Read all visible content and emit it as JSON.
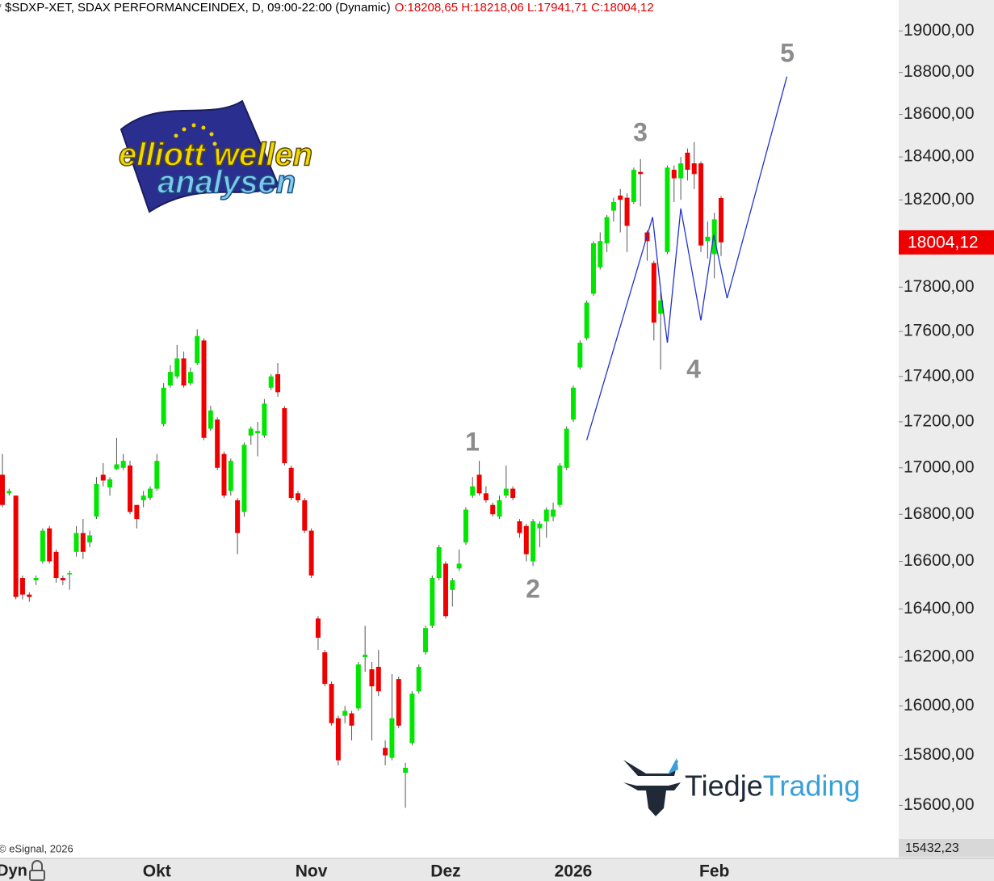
{
  "chart_data": {
    "type": "candlestick",
    "header": "* $SDXP-XET, SDAX PERFORMANCEINDEX, D, 09:00-22:00 (Dynamic)",
    "ohlc_text": "O:18208,65 H:18218,06 L:17941,71 C:18004,12",
    "copyright": "© eSignal, 2026",
    "mode_label": "Dyn",
    "logo_top": "elliott wellen",
    "logo_bottom": "analysen",
    "brand_first": "Tiedje",
    "brand_second": "Trading",
    "up_color": "#00e600",
    "down_color": "#ee0000",
    "log_scale": true,
    "grid": false,
    "ylim": [
      15432.23,
      19150
    ],
    "bottom_label": {
      "value": 15432.23,
      "label": "15432,23"
    },
    "last_price": {
      "value": 18004.12,
      "label": "18004,12"
    },
    "yticks": [
      {
        "value": 15600,
        "label": "15600,00"
      },
      {
        "value": 15800,
        "label": "15800,00"
      },
      {
        "value": 16000,
        "label": "16000,00"
      },
      {
        "value": 16200,
        "label": "16200,00"
      },
      {
        "value": 16400,
        "label": "16400,00"
      },
      {
        "value": 16600,
        "label": "16600,00"
      },
      {
        "value": 16800,
        "label": "16800,00"
      },
      {
        "value": 17000,
        "label": "17000,00"
      },
      {
        "value": 17200,
        "label": "17200,00"
      },
      {
        "value": 17400,
        "label": "17400,00"
      },
      {
        "value": 17600,
        "label": "17600,00"
      },
      {
        "value": 17800,
        "label": "17800,00"
      },
      {
        "value": 18200,
        "label": "18200,00"
      },
      {
        "value": 18400,
        "label": "18400,00"
      },
      {
        "value": 18600,
        "label": "18600,00"
      },
      {
        "value": 18800,
        "label": "18800,00"
      },
      {
        "value": 19000,
        "label": "19000,00"
      }
    ],
    "categories": [
      null,
      null,
      null,
      null,
      null,
      null,
      null,
      null,
      null,
      null,
      null,
      null,
      null,
      null,
      null,
      null,
      null,
      null,
      null,
      null,
      null,
      null,
      null,
      "Okt",
      null,
      null,
      null,
      null,
      null,
      null,
      null,
      null,
      null,
      null,
      null,
      null,
      null,
      null,
      null,
      null,
      null,
      null,
      null,
      null,
      null,
      null,
      "Nov",
      null,
      null,
      null,
      null,
      null,
      null,
      null,
      null,
      null,
      null,
      null,
      null,
      null,
      null,
      null,
      null,
      null,
      null,
      null,
      "Dez",
      null,
      null,
      null,
      null,
      null,
      null,
      null,
      null,
      null,
      null,
      null,
      null,
      null,
      null,
      null,
      null,
      null,
      null,
      "2026",
      null,
      null,
      null,
      null,
      null,
      null,
      null,
      null,
      null,
      null,
      null,
      null,
      null,
      null,
      null,
      null,
      null,
      null,
      null,
      null,
      "Feb",
      null
    ],
    "open": [
      16970,
      16890,
      16880,
      16530,
      16460,
      16520,
      16600,
      16740,
      16640,
      16530,
      16545,
      16640,
      16720,
      16680,
      16790,
      16970,
      16915,
      16995,
      17000,
      17010,
      16840,
      16860,
      16870,
      16910,
      17190,
      17360,
      17400,
      17480,
      17370,
      17460,
      17560,
      17170,
      17210,
      17060,
      16900,
      16860,
      16810,
      17140,
      17150,
      17140,
      17350,
      17410,
      17260,
      17000,
      16890,
      16860,
      16730,
      16360,
      16220,
      16090,
      15950,
      15960,
      15970,
      15990,
      16200,
      16150,
      16160,
      15830,
      15790,
      16110,
      15730,
      15850,
      16060,
      16220,
      16330,
      16530,
      16590,
      16480,
      16570,
      16680,
      16880,
      16970,
      16890,
      16840,
      16790,
      16880,
      16910,
      16770,
      16750,
      16600,
      16740,
      16770,
      16790,
      16840,
      17000,
      17210,
      17440,
      17570,
      17770,
      17890,
      18000,
      18150,
      18220,
      18210,
      18190,
      18330,
      18050,
      17910,
      17680,
      17960,
      18340,
      18300,
      18420,
      18370,
      18370,
      18010,
      17950,
      18208.65
    ],
    "high": [
      17060,
      16910,
      16880,
      16540,
      16470,
      16540,
      16740,
      16750,
      16650,
      16540,
      16560,
      16750,
      16780,
      16730,
      16960,
      17020,
      16960,
      17130,
      17060,
      17030,
      16840,
      16900,
      16920,
      17060,
      17370,
      17450,
      17540,
      17510,
      17440,
      17610,
      17570,
      17270,
      17220,
      17070,
      17040,
      16870,
      17110,
      17180,
      17200,
      17300,
      17410,
      17460,
      17270,
      17010,
      16900,
      16870,
      16740,
      16370,
      16230,
      16100,
      15960,
      16000,
      15980,
      16180,
      16330,
      16180,
      16230,
      15860,
      16130,
      16120,
      15770,
      16060,
      16170,
      16330,
      16540,
      16670,
      16600,
      16530,
      16650,
      16830,
      16960,
      17030,
      16920,
      16850,
      16880,
      17010,
      16920,
      16780,
      16760,
      16780,
      16770,
      16830,
      16850,
      17020,
      17180,
      17360,
      17560,
      17740,
      18010,
      18050,
      18130,
      18210,
      18250,
      18230,
      18350,
      18390,
      18060,
      17920,
      17780,
      18360,
      18360,
      18400,
      18440,
      18470,
      18380,
      18100,
      18140,
      18218.06
    ],
    "low": [
      16830,
      16880,
      16440,
      16440,
      16430,
      16500,
      16590,
      16590,
      16510,
      16500,
      16480,
      16620,
      16610,
      16660,
      16780,
      16920,
      16880,
      16990,
      16990,
      16800,
      16740,
      16830,
      16860,
      16900,
      17180,
      17350,
      17390,
      17350,
      17360,
      17450,
      17120,
      17160,
      16990,
      16870,
      16880,
      16630,
      16790,
      17100,
      17050,
      17130,
      17340,
      17310,
      17010,
      16860,
      16850,
      16720,
      16530,
      16230,
      16080,
      15920,
      15760,
      15930,
      15860,
      15980,
      16140,
      15860,
      16040,
      15760,
      15780,
      15910,
      15590,
      15840,
      16050,
      16210,
      16320,
      16520,
      16360,
      16410,
      16560,
      16670,
      16870,
      16880,
      16850,
      16790,
      16780,
      16870,
      16860,
      16700,
      16600,
      16580,
      16660,
      16700,
      16770,
      16830,
      16990,
      17200,
      17430,
      17560,
      17760,
      17880,
      17960,
      18100,
      18050,
      17960,
      18180,
      18170,
      17920,
      17560,
      17430,
      17950,
      18190,
      18200,
      18290,
      18250,
      17960,
      17930,
      17840,
      17941.71
    ],
    "close": [
      16840,
      16900,
      16450,
      16460,
      16450,
      16530,
      16730,
      16600,
      16530,
      16520,
      16550,
      16720,
      16640,
      16710,
      16930,
      16945,
      16950,
      17015,
      17030,
      16810,
      16780,
      16880,
      16910,
      17030,
      17350,
      17420,
      17480,
      17360,
      17420,
      17580,
      17130,
      17250,
      17000,
      16880,
      17030,
      16720,
      17100,
      17170,
      17160,
      17280,
      17400,
      17330,
      17020,
      16870,
      16860,
      16730,
      16540,
      16280,
      16090,
      15930,
      15780,
      15980,
      15920,
      16170,
      16210,
      16080,
      16060,
      15800,
      15950,
      15920,
      15750,
      16050,
      16160,
      16320,
      16530,
      16660,
      16370,
      16520,
      16590,
      16820,
      16920,
      16890,
      16860,
      16800,
      16860,
      16910,
      16870,
      16720,
      16630,
      16770,
      16760,
      16820,
      16820,
      17010,
      17170,
      17350,
      17550,
      17730,
      18000,
      18010,
      18120,
      18190,
      18200,
      18080,
      18340,
      18320,
      18010,
      17640,
      17740,
      18350,
      18300,
      18370,
      18340,
      18320,
      17990,
      18030,
      18110,
      18004.12
    ],
    "projection": {
      "color": "#2233cc",
      "x": [
        87,
        96.8,
        98,
        99,
        101,
        104,
        105.9,
        107.9,
        116.8
      ],
      "values": [
        17120,
        18120,
        17790,
        17550,
        18160,
        17650,
        18040,
        17750,
        18780
      ]
    },
    "wave_labels": [
      "1",
      "2",
      "3",
      "4",
      "5"
    ]
  }
}
